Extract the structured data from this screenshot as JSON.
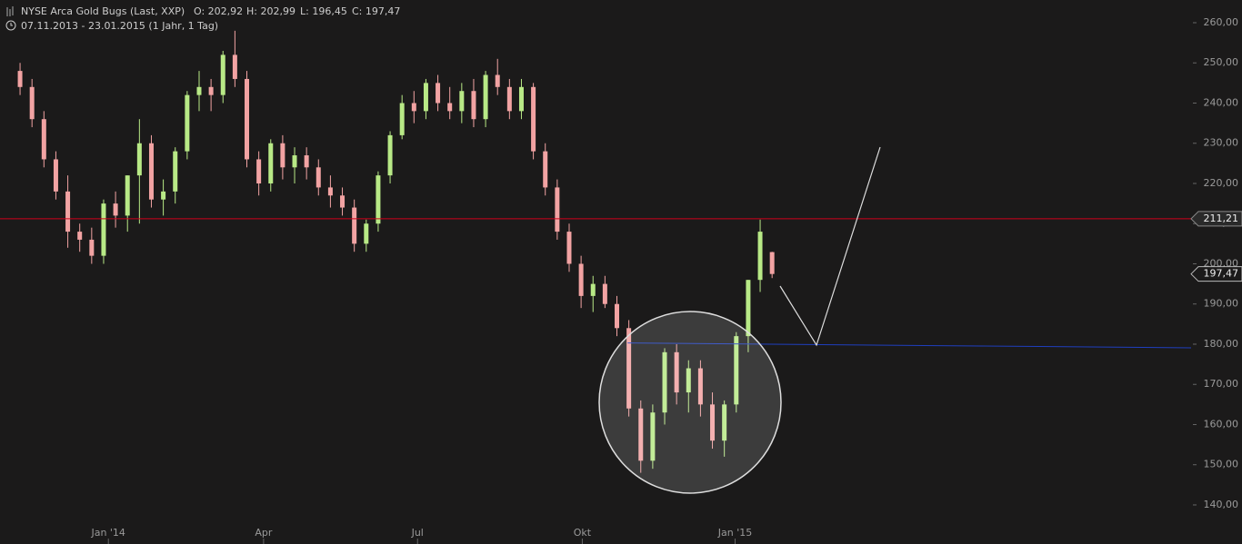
{
  "chart_data": {
    "type": "candlestick",
    "title": "NYSE Arca Gold Bugs (Last, XXP)",
    "header_stats": [
      "O: 202,92",
      "H: 202,99",
      "L: 196,45",
      "C: 197,47"
    ],
    "subtitle": "07.11.2013 - 23.01.2015 (1 Jahr, 1 Tag)",
    "open": [
      248,
      244,
      236,
      226,
      218,
      208,
      206,
      202,
      215,
      212,
      222,
      230,
      216,
      218,
      228,
      242,
      244,
      242,
      252,
      246,
      226,
      220,
      230,
      224,
      227,
      224,
      219,
      217,
      214,
      205,
      210,
      222,
      232,
      240,
      238,
      245,
      240,
      238,
      243,
      236,
      247,
      244,
      238,
      244,
      228,
      219,
      208,
      200,
      192,
      195,
      190,
      184,
      164,
      151,
      163,
      178,
      168,
      174,
      165,
      156,
      165,
      182,
      196,
      202.92
    ],
    "high": [
      250,
      246,
      238,
      228,
      222,
      210,
      209,
      216,
      218,
      222,
      236,
      232,
      221,
      229,
      243,
      248,
      246,
      253,
      258,
      248,
      228,
      231,
      232,
      229,
      229,
      226,
      222,
      219,
      216,
      211,
      223,
      233,
      242,
      243,
      246,
      247,
      244,
      245,
      246,
      248,
      251,
      246,
      246,
      245,
      230,
      221,
      210,
      202,
      197,
      197,
      192,
      186,
      166,
      165,
      179,
      180,
      176,
      176,
      168,
      166,
      183,
      196,
      211,
      202.99
    ],
    "low": [
      242,
      234,
      224,
      216,
      204,
      203,
      200,
      200,
      209,
      208,
      210,
      214,
      212,
      215,
      226,
      238,
      238,
      240,
      244,
      224,
      217,
      218,
      221,
      220,
      221,
      217,
      214,
      212,
      203,
      203,
      208,
      220,
      231,
      235,
      236,
      238,
      236,
      235,
      234,
      234,
      242,
      236,
      236,
      226,
      217,
      206,
      198,
      189,
      188,
      189,
      182,
      162,
      148,
      149,
      160,
      165,
      163,
      162,
      154,
      152,
      163,
      178,
      193,
      196.45
    ],
    "close": [
      244,
      236,
      226,
      218,
      208,
      206,
      202,
      215,
      212,
      222,
      230,
      216,
      218,
      228,
      242,
      244,
      242,
      252,
      246,
      226,
      220,
      230,
      224,
      227,
      224,
      219,
      217,
      214,
      205,
      210,
      222,
      232,
      240,
      238,
      245,
      240,
      238,
      243,
      236,
      247,
      244,
      238,
      244,
      228,
      219,
      208,
      200,
      192,
      195,
      190,
      184,
      164,
      151,
      163,
      178,
      168,
      174,
      165,
      156,
      165,
      182,
      196,
      208,
      197.47
    ],
    "up_color": "#b8e986",
    "down_color": "#f2a3a3",
    "xlim": [
      -1.68,
      98.1
    ],
    "xticks": [
      {
        "value": 7.4,
        "label": "Jan '14"
      },
      {
        "value": 20.4,
        "label": "Apr"
      },
      {
        "value": 33.3,
        "label": "Jul"
      },
      {
        "value": 47.1,
        "label": "Okt"
      },
      {
        "value": 59.9,
        "label": "Jan '15"
      }
    ],
    "ylim": [
      135.7,
      265.65
    ],
    "yticks": [
      {
        "value": 140,
        "label": "140,00"
      },
      {
        "value": 150,
        "label": "150,00"
      },
      {
        "value": 160,
        "label": "160,00"
      },
      {
        "value": 170,
        "label": "170,00"
      },
      {
        "value": 180,
        "label": "180,00"
      },
      {
        "value": 190,
        "label": "190,00"
      },
      {
        "value": 200,
        "label": "200,00"
      },
      {
        "value": 210,
        "label": "210,00"
      },
      {
        "value": 220,
        "label": "220,00"
      },
      {
        "value": 230,
        "label": "230,00"
      },
      {
        "value": 240,
        "label": "240,00"
      },
      {
        "value": 250,
        "label": "250,00"
      },
      {
        "value": 260,
        "label": "260,00"
      }
    ],
    "resistance_line": {
      "value": 211.21,
      "label": "211,21",
      "color": "#d0021b"
    },
    "support_line": {
      "x": [
        50.9,
        98.1
      ],
      "y": [
        180.3,
        179.1
      ],
      "color": "#1f3fbf"
    },
    "last_price": {
      "value": 197.47,
      "label": "197,47"
    }
  }
}
